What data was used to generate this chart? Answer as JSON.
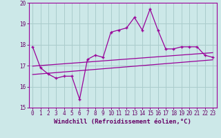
{
  "xlabel": "Windchill (Refroidissement éolien,°C)",
  "background_color": "#cce8e8",
  "line_color": "#990099",
  "grid_color": "#aacccc",
  "x_values": [
    0,
    1,
    2,
    3,
    4,
    5,
    6,
    7,
    8,
    9,
    10,
    11,
    12,
    13,
    14,
    15,
    16,
    17,
    18,
    19,
    20,
    21,
    22,
    23
  ],
  "y_main": [
    17.9,
    16.9,
    16.6,
    16.4,
    16.5,
    16.5,
    15.4,
    17.3,
    17.5,
    17.4,
    18.6,
    18.7,
    18.8,
    19.3,
    18.7,
    19.7,
    18.7,
    17.8,
    17.8,
    17.9,
    17.9,
    17.9,
    17.5,
    17.4
  ],
  "y_reg1_start": 16.98,
  "y_reg1_end": 17.62,
  "y_reg2_start": 16.58,
  "y_reg2_end": 17.28,
  "ylim": [
    15.0,
    20.0
  ],
  "xlim": [
    -0.5,
    23.5
  ],
  "yticks": [
    15,
    16,
    17,
    18,
    19,
    20
  ],
  "xticks": [
    0,
    1,
    2,
    3,
    4,
    5,
    6,
    7,
    8,
    9,
    10,
    11,
    12,
    13,
    14,
    15,
    16,
    17,
    18,
    19,
    20,
    21,
    22,
    23
  ],
  "font_color": "#660066",
  "tick_fontsize": 5.5,
  "label_fontsize": 6.5
}
